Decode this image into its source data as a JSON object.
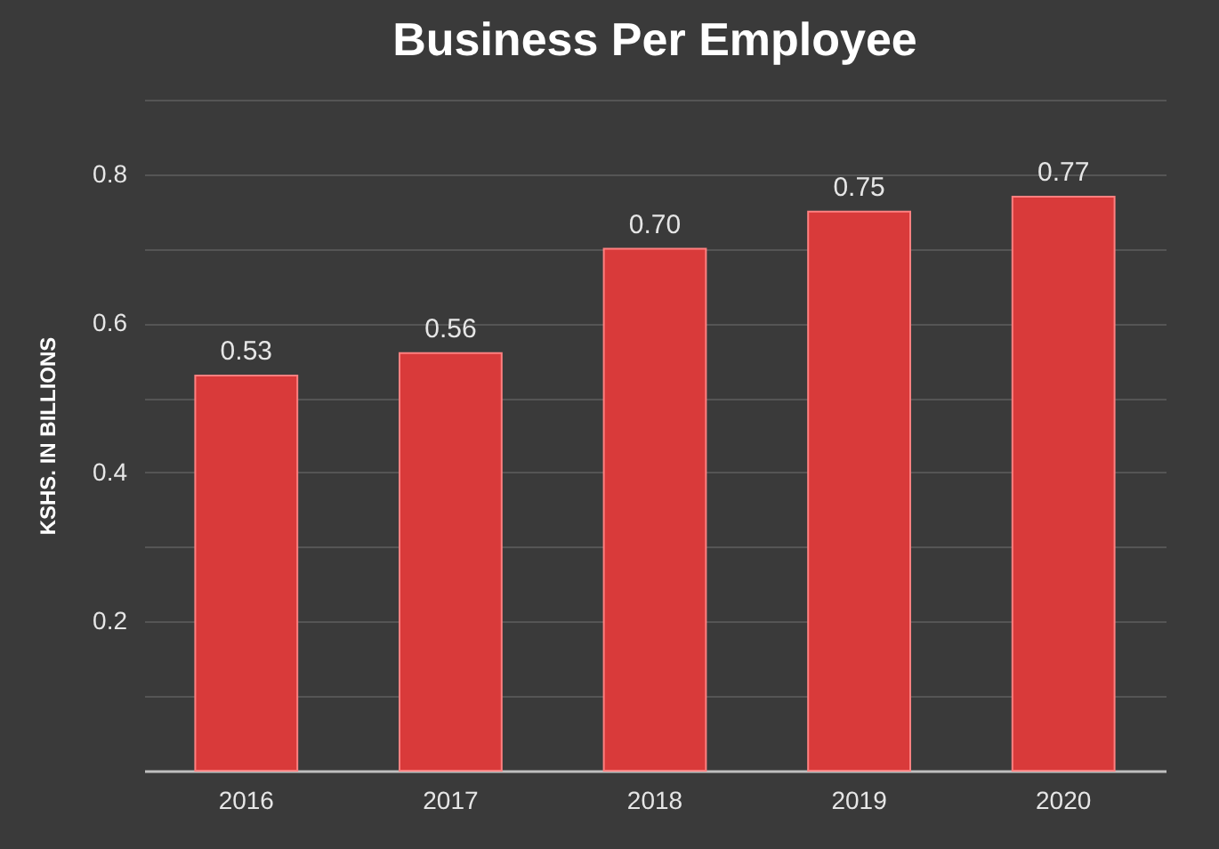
{
  "chart_data": {
    "type": "bar",
    "title": "Business Per Employee",
    "ylabel": "KSHS. IN BILLIONS",
    "categories": [
      "2016",
      "2017",
      "2018",
      "2019",
      "2020"
    ],
    "values": [
      0.53,
      0.56,
      0.7,
      0.75,
      0.77
    ],
    "value_labels": [
      "0.53",
      "0.56",
      "0.70",
      "0.75",
      "0.77"
    ],
    "color": "#d93a3a",
    "ylim": [
      0,
      0.9
    ],
    "yticks": [
      {
        "value": 0.1,
        "label": null
      },
      0.2,
      {
        "value": 0.3,
        "label": null
      },
      0.4,
      {
        "value": 0.5,
        "label": null
      },
      0.6,
      {
        "value": 0.7,
        "label": null
      },
      0.8,
      {
        "value": 0.9,
        "label": null
      }
    ],
    "grid": "y"
  }
}
